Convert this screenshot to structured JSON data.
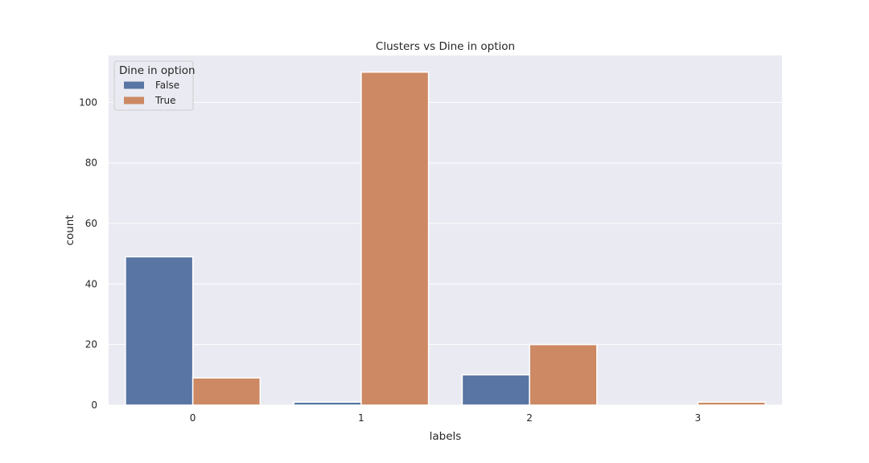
{
  "chart_data": {
    "type": "bar",
    "title": "Clusters vs Dine in option",
    "xlabel": "labels",
    "ylabel": "count",
    "categories": [
      "0",
      "1",
      "2",
      "3"
    ],
    "ylim": [
      0,
      115.5
    ],
    "yticks": [
      0,
      20,
      40,
      60,
      80,
      100
    ],
    "grid": true,
    "legend": {
      "title": "Dine in option",
      "placement": "top-left"
    },
    "series": [
      {
        "name": "False",
        "color": "#5875a4",
        "values": [
          49,
          1,
          10,
          0
        ]
      },
      {
        "name": "True",
        "color": "#cc8963",
        "values": [
          9,
          110,
          20,
          1
        ]
      }
    ]
  }
}
